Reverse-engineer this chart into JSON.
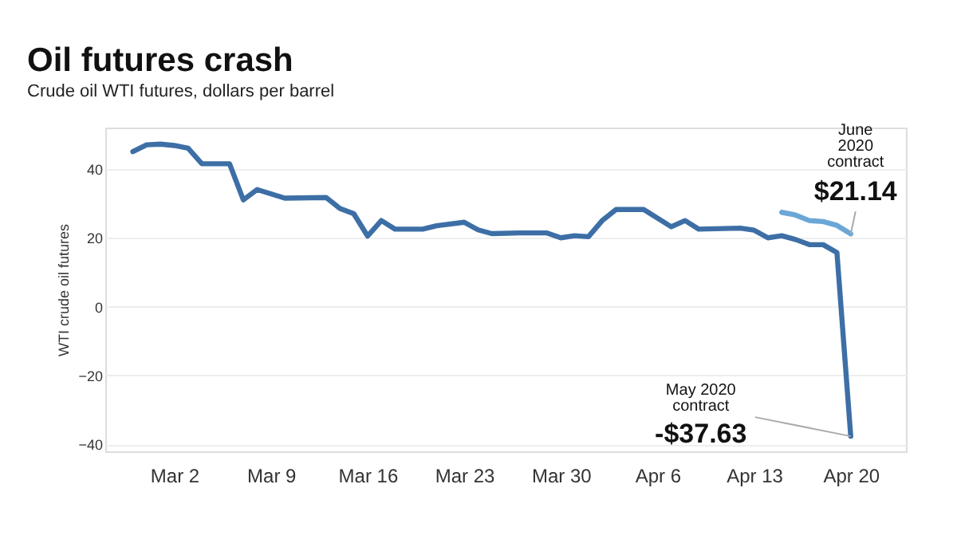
{
  "chart_data": {
    "type": "line",
    "title": "Oil futures crash",
    "subtitle": "Crude oil WTI futures, dollars per barrel",
    "ylabel": "WTI crude oil futures",
    "xlim": [
      "2020-02-26",
      "2020-04-24"
    ],
    "xticks": [
      {
        "value": "2020-03-02",
        "label": "Mar 2"
      },
      {
        "value": "2020-03-09",
        "label": "Mar 9"
      },
      {
        "value": "2020-03-16",
        "label": "Mar 16"
      },
      {
        "value": "2020-03-23",
        "label": "Mar 23"
      },
      {
        "value": "2020-03-30",
        "label": "Mar 30"
      },
      {
        "value": "2020-04-06",
        "label": "Apr 6"
      },
      {
        "value": "2020-04-13",
        "label": "Apr 13"
      },
      {
        "value": "2020-04-20",
        "label": "Apr 20"
      }
    ],
    "ylim": [
      -42,
      52
    ],
    "yticks": [
      -40,
      -20,
      0,
      20,
      40
    ],
    "grid": "y",
    "marker": "none",
    "line_style": "solid",
    "series": [
      {
        "color": "#3d6fa6",
        "x": [
          "2020-02-28",
          "2020-02-29",
          "2020-03-01",
          "2020-03-02",
          "2020-03-03",
          "2020-03-04",
          "2020-03-06",
          "2020-03-07",
          "2020-03-08",
          "2020-03-10",
          "2020-03-13",
          "2020-03-14",
          "2020-03-15",
          "2020-03-16",
          "2020-03-17",
          "2020-03-18",
          "2020-03-20",
          "2020-03-21",
          "2020-03-23",
          "2020-03-24",
          "2020-03-25",
          "2020-03-27",
          "2020-03-29",
          "2020-03-30",
          "2020-03-31",
          "2020-04-01",
          "2020-04-02",
          "2020-04-03",
          "2020-04-05",
          "2020-04-07",
          "2020-04-08",
          "2020-04-09",
          "2020-04-12",
          "2020-04-13",
          "2020-04-14",
          "2020-04-15",
          "2020-04-16",
          "2020-04-17",
          "2020-04-18",
          "2020-04-19",
          "2020-04-20"
        ],
        "values": [
          45,
          47,
          47.2,
          46.8,
          46,
          41.5,
          41.5,
          31,
          34,
          31.5,
          31.7,
          28.5,
          27,
          20.5,
          25,
          22.5,
          22.5,
          23.5,
          24.5,
          22.3,
          21.2,
          21.4,
          21.4,
          20,
          20.6,
          20.3,
          25,
          28.2,
          28.2,
          23.2,
          25,
          22.5,
          22.8,
          22.2,
          20,
          20.6,
          19.5,
          18,
          18,
          15.7,
          -37.63
        ]
      },
      {
        "color": "#6ba7d6",
        "x": [
          "2020-04-15",
          "2020-04-16",
          "2020-04-17",
          "2020-04-18",
          "2020-04-19",
          "2020-04-20"
        ],
        "values": [
          27.4,
          26.6,
          25,
          24.7,
          23.6,
          21.14
        ]
      }
    ],
    "annotations": [
      "June\n2020\ncontract",
      {
        "text": "$21.14",
        "x": "2020-04-20",
        "y": 21.14
      },
      {
        "text": "May 2020\ncontract",
        "x": "2020-04-20",
        "y": -37.63
      },
      {
        "text": "-$37.63",
        "x": "2020-04-20",
        "y": -37.63
      }
    ]
  }
}
